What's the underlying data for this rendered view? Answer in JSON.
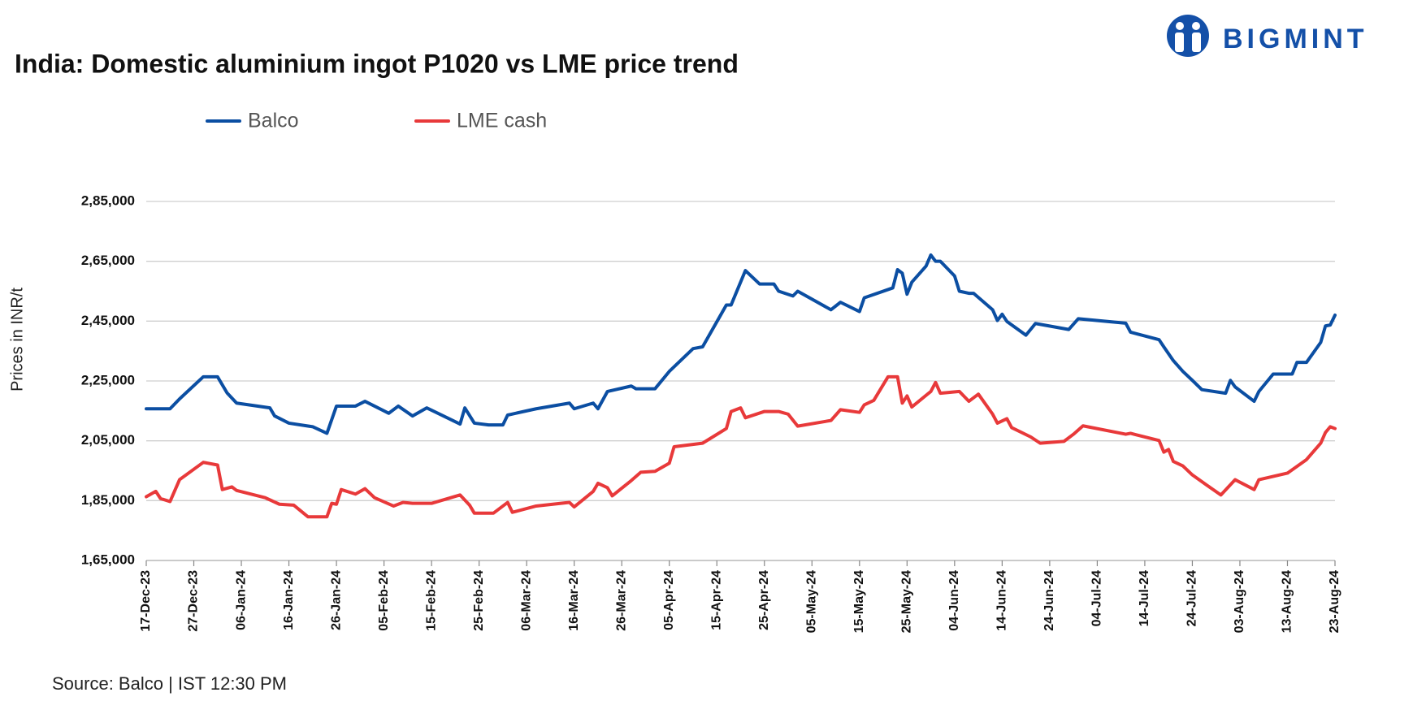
{
  "logo": "BIGMINT",
  "chart_data": {
    "type": "line",
    "title": "India: Domestic aluminium ingot P1020 vs LME price trend",
    "y_label": "Prices in INR/t",
    "source": "Source: Balco | IST 12:30 PM",
    "grid": true,
    "ylim": [
      165000,
      285000
    ],
    "yticks": [
      {
        "value": 165000,
        "label": "1,65,000"
      },
      {
        "value": 185000,
        "label": "1,85,000"
      },
      {
        "value": 205000,
        "label": "2,05,000"
      },
      {
        "value": 225000,
        "label": "2,25,000"
      },
      {
        "value": 245000,
        "label": "2,45,000"
      },
      {
        "value": 265000,
        "label": "2,65,000"
      },
      {
        "value": 285000,
        "label": "2,85,000"
      }
    ],
    "xlim": [
      "17-Dec-23",
      "23-Aug-24"
    ],
    "xticks": [
      "17-Dec-23",
      "27-Dec-23",
      "06-Jan-24",
      "16-Jan-24",
      "26-Jan-24",
      "05-Feb-24",
      "15-Feb-24",
      "25-Feb-24",
      "06-Mar-24",
      "16-Mar-24",
      "26-Mar-24",
      "05-Apr-24",
      "15-Apr-24",
      "25-Apr-24",
      "05-May-24",
      "15-May-24",
      "25-May-24",
      "04-Jun-24",
      "14-Jun-24",
      "24-Jun-24",
      "04-Jul-24",
      "14-Jul-24",
      "24-Jul-24",
      "03-Aug-24",
      "13-Aug-24",
      "23-Aug-24"
    ],
    "series": [
      {
        "name": "Balco",
        "color": "#0b4ea2",
        "x": [
          "17-Dec-23",
          "22-Dec-23",
          "24-Dec-23",
          "29-Dec-23",
          "01-Jan-24",
          "03-Jan-24",
          "05-Jan-24",
          "12-Jan-24",
          "13-Jan-24",
          "16-Jan-24",
          "21-Jan-24",
          "24-Jan-24",
          "26-Jan-24",
          "30-Jan-24",
          "01-Feb-24",
          "03-Feb-24",
          "06-Feb-24",
          "08-Feb-24",
          "11-Feb-24",
          "14-Feb-24",
          "21-Feb-24",
          "22-Feb-24",
          "24-Feb-24",
          "27-Feb-24",
          "01-Mar-24",
          "02-Mar-24",
          "08-Mar-24",
          "15-Mar-24",
          "16-Mar-24",
          "20-Mar-24",
          "21-Mar-24",
          "23-Mar-24",
          "28-Mar-24",
          "29-Mar-24",
          "02-Apr-24",
          "05-Apr-24",
          "10-Apr-24",
          "12-Apr-24",
          "17-Apr-24",
          "18-Apr-24",
          "21-Apr-24",
          "24-Apr-24",
          "27-Apr-24",
          "28-Apr-24",
          "01-May-24",
          "02-May-24",
          "09-May-24",
          "11-May-24",
          "15-May-24",
          "16-May-24",
          "22-May-24",
          "23-May-24",
          "24-May-24",
          "25-May-24",
          "26-May-24",
          "29-May-24",
          "30-May-24",
          "31-May-24",
          "01-Jun-24",
          "04-Jun-24",
          "05-Jun-24",
          "07-Jun-24",
          "08-Jun-24",
          "12-Jun-24",
          "13-Jun-24",
          "14-Jun-24",
          "15-Jun-24",
          "19-Jun-24",
          "21-Jun-24",
          "28-Jun-24",
          "30-Jun-24",
          "10-Jul-24",
          "11-Jul-24",
          "17-Jul-24",
          "18-Jul-24",
          "20-Jul-24",
          "22-Jul-24",
          "24-Jul-24",
          "26-Jul-24",
          "31-Jul-24",
          "01-Aug-24",
          "02-Aug-24",
          "06-Aug-24",
          "07-Aug-24",
          "10-Aug-24",
          "14-Aug-24",
          "15-Aug-24",
          "17-Aug-24",
          "20-Aug-24",
          "21-Aug-24",
          "22-Aug-24",
          "23-Aug-24"
        ],
        "values": [
          215700,
          215700,
          219000,
          226400,
          226400,
          221000,
          217600,
          216000,
          213300,
          210900,
          209700,
          207500,
          216600,
          216600,
          218200,
          216600,
          214200,
          216600,
          213300,
          216000,
          210600,
          216000,
          210900,
          210300,
          210300,
          213600,
          215700,
          217600,
          215700,
          217600,
          215700,
          221500,
          223300,
          222400,
          222400,
          228200,
          235800,
          236400,
          250400,
          250400,
          261900,
          257400,
          257400,
          255000,
          253400,
          255000,
          248800,
          251300,
          248200,
          252800,
          256100,
          262200,
          261000,
          254000,
          258000,
          263400,
          267100,
          265000,
          265000,
          260100,
          255000,
          254300,
          254300,
          248800,
          245200,
          247300,
          244900,
          240300,
          244200,
          242200,
          245800,
          244300,
          241300,
          238800,
          236400,
          231800,
          228200,
          225200,
          222100,
          220900,
          225200,
          223000,
          218200,
          221500,
          227300,
          227300,
          231200,
          231200,
          237900,
          243400,
          243700,
          247000
        ]
      },
      {
        "name": "LME cash",
        "color": "#e8393a",
        "x": [
          "17-Dec-23",
          "19-Dec-23",
          "20-Dec-23",
          "22-Dec-23",
          "24-Dec-23",
          "29-Dec-23",
          "01-Jan-24",
          "02-Jan-24",
          "04-Jan-24",
          "05-Jan-24",
          "11-Jan-24",
          "14-Jan-24",
          "17-Jan-24",
          "20-Jan-24",
          "24-Jan-24",
          "25-Jan-24",
          "26-Jan-24",
          "27-Jan-24",
          "30-Jan-24",
          "01-Feb-24",
          "03-Feb-24",
          "07-Feb-24",
          "09-Feb-24",
          "11-Feb-24",
          "15-Feb-24",
          "21-Feb-24",
          "23-Feb-24",
          "24-Feb-24",
          "28-Feb-24",
          "02-Mar-24",
          "03-Mar-24",
          "08-Mar-24",
          "15-Mar-24",
          "16-Mar-24",
          "20-Mar-24",
          "21-Mar-24",
          "23-Mar-24",
          "24-Mar-24",
          "28-Mar-24",
          "30-Mar-24",
          "02-Apr-24",
          "05-Apr-24",
          "06-Apr-24",
          "12-Apr-24",
          "17-Apr-24",
          "18-Apr-24",
          "20-Apr-24",
          "21-Apr-24",
          "25-Apr-24",
          "28-Apr-24",
          "30-Apr-24",
          "02-May-24",
          "09-May-24",
          "11-May-24",
          "15-May-24",
          "16-May-24",
          "18-May-24",
          "21-May-24",
          "23-May-24",
          "24-May-24",
          "25-May-24",
          "26-May-24",
          "30-May-24",
          "31-May-24",
          "01-Jun-24",
          "05-Jun-24",
          "07-Jun-24",
          "09-Jun-24",
          "12-Jun-24",
          "13-Jun-24",
          "15-Jun-24",
          "16-Jun-24",
          "20-Jun-24",
          "22-Jun-24",
          "27-Jun-24",
          "29-Jun-24",
          "01-Jul-24",
          "10-Jul-24",
          "11-Jul-24",
          "17-Jul-24",
          "18-Jul-24",
          "19-Jul-24",
          "20-Jul-24",
          "22-Jul-24",
          "24-Jul-24",
          "27-Jul-24",
          "30-Jul-24",
          "02-Aug-24",
          "06-Aug-24",
          "07-Aug-24",
          "13-Aug-24",
          "17-Aug-24",
          "20-Aug-24",
          "21-Aug-24",
          "22-Aug-24",
          "23-Aug-24"
        ],
        "values": [
          186300,
          188100,
          185700,
          184700,
          192000,
          197800,
          196900,
          188700,
          189600,
          188400,
          186000,
          183800,
          183500,
          179600,
          179600,
          184100,
          183800,
          188700,
          187200,
          189000,
          186000,
          183200,
          184400,
          184100,
          184100,
          186900,
          183500,
          180800,
          180800,
          184400,
          181100,
          183200,
          184400,
          182900,
          188100,
          190800,
          189300,
          186600,
          191700,
          194500,
          194800,
          197500,
          203000,
          204200,
          209100,
          214800,
          216000,
          212700,
          214800,
          214800,
          213900,
          209900,
          211800,
          215400,
          214500,
          217000,
          218500,
          226400,
          226400,
          217600,
          220000,
          216300,
          221500,
          224500,
          220900,
          221500,
          218200,
          220600,
          213900,
          210900,
          212400,
          209400,
          206300,
          204200,
          204800,
          207200,
          210000,
          207200,
          207500,
          205100,
          201200,
          202100,
          198100,
          196600,
          193600,
          190200,
          186900,
          192000,
          188700,
          192000,
          194200,
          198700,
          204200,
          207800,
          209700,
          209100
        ]
      }
    ]
  }
}
